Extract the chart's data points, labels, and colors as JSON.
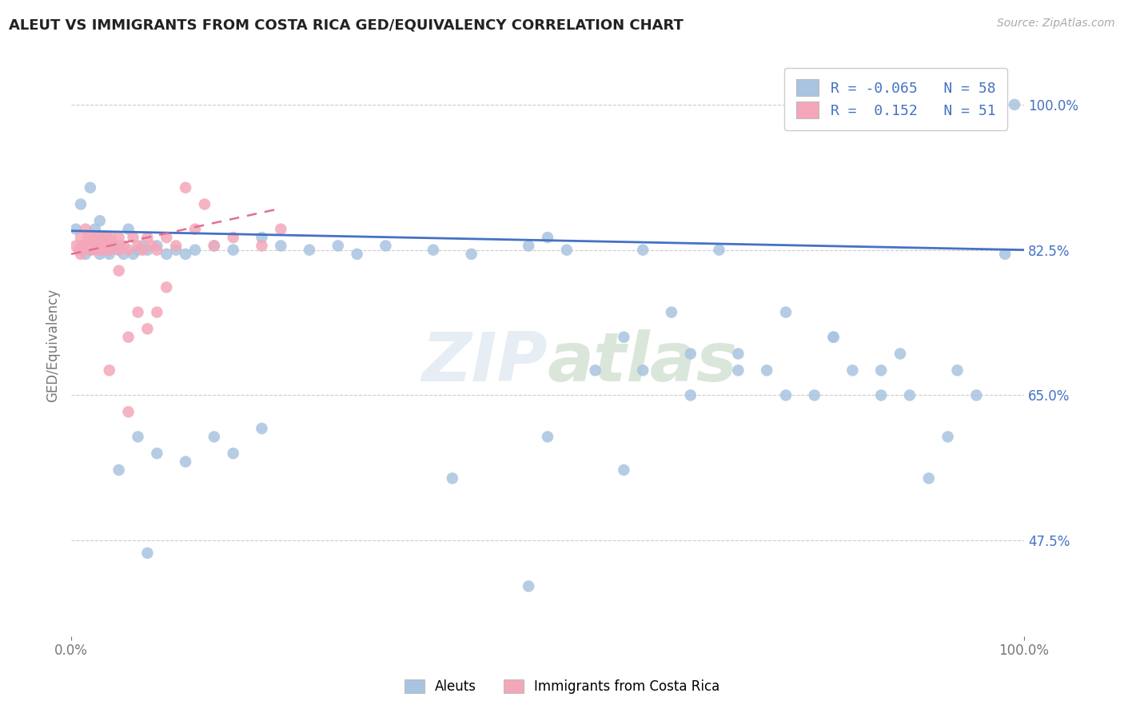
{
  "title": "ALEUT VS IMMIGRANTS FROM COSTA RICA GED/EQUIVALENCY CORRELATION CHART",
  "source": "Source: ZipAtlas.com",
  "ylabel": "GED/Equivalency",
  "aleut_color": "#a8c4e0",
  "costa_rica_color": "#f4a7b9",
  "aleut_line_color": "#4472c4",
  "costa_rica_line_color": "#e07090",
  "aleut_R": -0.065,
  "aleut_N": 58,
  "costa_rica_R": 0.152,
  "costa_rica_N": 51,
  "xrange": [
    0.0,
    1.0
  ],
  "yrange": [
    0.36,
    1.06
  ],
  "yticks": [
    0.475,
    0.65,
    0.825,
    1.0
  ],
  "ytick_labels": [
    "47.5%",
    "65.0%",
    "82.5%",
    "100.0%"
  ],
  "aleut_x": [
    0.005,
    0.01,
    0.015,
    0.02,
    0.02,
    0.025,
    0.025,
    0.03,
    0.03,
    0.03,
    0.035,
    0.04,
    0.04,
    0.045,
    0.05,
    0.05,
    0.055,
    0.06,
    0.065,
    0.07,
    0.075,
    0.08,
    0.09,
    0.1,
    0.11,
    0.12,
    0.13,
    0.15,
    0.17,
    0.2,
    0.22,
    0.25,
    0.28,
    0.3,
    0.33,
    0.38,
    0.42,
    0.48,
    0.5,
    0.52,
    0.55,
    0.58,
    0.6,
    0.63,
    0.65,
    0.68,
    0.7,
    0.73,
    0.75,
    0.78,
    0.8,
    0.82,
    0.85,
    0.87,
    0.9,
    0.92,
    0.99
  ],
  "aleut_y": [
    0.85,
    0.88,
    0.82,
    0.825,
    0.9,
    0.85,
    0.83,
    0.82,
    0.86,
    0.825,
    0.84,
    0.82,
    0.825,
    0.83,
    0.825,
    0.83,
    0.82,
    0.85,
    0.82,
    0.825,
    0.83,
    0.825,
    0.83,
    0.82,
    0.825,
    0.82,
    0.825,
    0.83,
    0.825,
    0.84,
    0.83,
    0.825,
    0.83,
    0.82,
    0.83,
    0.825,
    0.82,
    0.83,
    0.84,
    0.825,
    0.68,
    0.72,
    0.825,
    0.75,
    0.7,
    0.825,
    0.7,
    0.68,
    0.75,
    0.65,
    0.72,
    0.68,
    0.65,
    0.7,
    0.55,
    0.6,
    1.0
  ],
  "aleut_x2": [
    0.05,
    0.07,
    0.09,
    0.12,
    0.15,
    0.17,
    0.2,
    0.4,
    0.5,
    0.58,
    0.6,
    0.65,
    0.7,
    0.75,
    0.8,
    0.85,
    0.88,
    0.93,
    0.95,
    0.98,
    0.08,
    0.48
  ],
  "aleut_y2": [
    0.56,
    0.6,
    0.58,
    0.57,
    0.6,
    0.58,
    0.61,
    0.55,
    0.6,
    0.56,
    0.68,
    0.65,
    0.68,
    0.65,
    0.72,
    0.68,
    0.65,
    0.68,
    0.65,
    0.82,
    0.46,
    0.42
  ],
  "costa_rica_x": [
    0.005,
    0.008,
    0.01,
    0.01,
    0.012,
    0.015,
    0.015,
    0.018,
    0.02,
    0.02,
    0.022,
    0.025,
    0.025,
    0.028,
    0.03,
    0.03,
    0.032,
    0.035,
    0.035,
    0.038,
    0.04,
    0.04,
    0.042,
    0.045,
    0.05,
    0.05,
    0.055,
    0.06,
    0.065,
    0.07,
    0.075,
    0.08,
    0.085,
    0.09,
    0.1,
    0.11,
    0.12,
    0.13,
    0.14,
    0.15,
    0.17,
    0.2,
    0.22,
    0.09,
    0.06,
    0.07,
    0.08,
    0.1,
    0.04,
    0.05,
    0.06
  ],
  "costa_rica_y": [
    0.83,
    0.825,
    0.84,
    0.82,
    0.83,
    0.85,
    0.83,
    0.84,
    0.83,
    0.825,
    0.84,
    0.825,
    0.83,
    0.84,
    0.825,
    0.83,
    0.84,
    0.83,
    0.825,
    0.84,
    0.83,
    0.825,
    0.84,
    0.83,
    0.825,
    0.84,
    0.83,
    0.825,
    0.84,
    0.83,
    0.825,
    0.84,
    0.83,
    0.825,
    0.84,
    0.83,
    0.9,
    0.85,
    0.88,
    0.83,
    0.84,
    0.83,
    0.85,
    0.75,
    0.72,
    0.75,
    0.73,
    0.78,
    0.68,
    0.8,
    0.63
  ],
  "aleut_trend_x0": 0.0,
  "aleut_trend_y0": 0.848,
  "aleut_trend_x1": 1.0,
  "aleut_trend_y1": 0.825,
  "costa_trend_x0": 0.0,
  "costa_trend_y0": 0.82,
  "costa_trend_x1": 0.22,
  "costa_trend_y1": 0.875
}
